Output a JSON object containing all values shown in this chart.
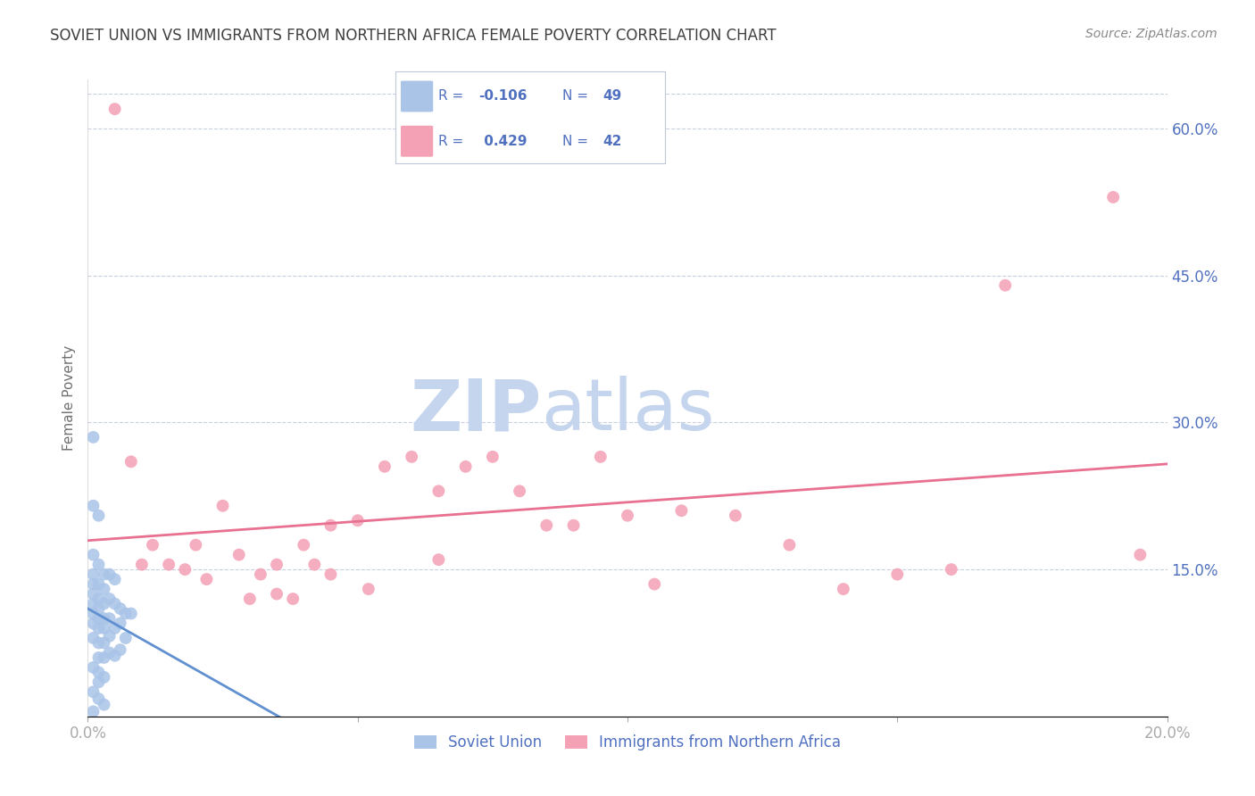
{
  "title": "SOVIET UNION VS IMMIGRANTS FROM NORTHERN AFRICA FEMALE POVERTY CORRELATION CHART",
  "source": "Source: ZipAtlas.com",
  "ylabel": "Female Poverty",
  "xlim": [
    0.0,
    0.2
  ],
  "ylim": [
    0.0,
    0.65
  ],
  "legend1_r": "-0.106",
  "legend1_n": "49",
  "legend2_r": "0.429",
  "legend2_n": "42",
  "series1_label": "Soviet Union",
  "series2_label": "Immigrants from Northern Africa",
  "series1_color": "#aac4e8",
  "series2_color": "#f4a0b5",
  "line1_color": "#6090d0",
  "line2_color": "#e87090",
  "watermark_zip": "ZIP",
  "watermark_atlas": "atlas",
  "watermark_color": "#c8d8f0",
  "grid_color": "#c8d0e0",
  "bg_color": "#ffffff",
  "title_color": "#404040",
  "tick_label_color": "#5070c0",
  "soviet_x": [
    0.001,
    0.001,
    0.001,
    0.001,
    0.001,
    0.001,
    0.001,
    0.001,
    0.001,
    0.001,
    0.002,
    0.002,
    0.002,
    0.002,
    0.002,
    0.002,
    0.002,
    0.002,
    0.002,
    0.002,
    0.003,
    0.003,
    0.003,
    0.003,
    0.003,
    0.003,
    0.003,
    0.003,
    0.004,
    0.004,
    0.004,
    0.004,
    0.004,
    0.005,
    0.005,
    0.005,
    0.005,
    0.006,
    0.006,
    0.006,
    0.007,
    0.007,
    0.008,
    0.001,
    0.002,
    0.001,
    0.002,
    0.003,
    0.001
  ],
  "soviet_y": [
    0.285,
    0.215,
    0.165,
    0.145,
    0.135,
    0.125,
    0.115,
    0.105,
    0.095,
    0.08,
    0.205,
    0.155,
    0.135,
    0.12,
    0.11,
    0.1,
    0.09,
    0.075,
    0.06,
    0.045,
    0.145,
    0.13,
    0.115,
    0.1,
    0.09,
    0.075,
    0.06,
    0.04,
    0.145,
    0.12,
    0.1,
    0.082,
    0.065,
    0.14,
    0.115,
    0.09,
    0.062,
    0.11,
    0.095,
    0.068,
    0.105,
    0.08,
    0.105,
    0.05,
    0.035,
    0.025,
    0.018,
    0.012,
    0.005
  ],
  "nafr_x": [
    0.005,
    0.008,
    0.01,
    0.012,
    0.015,
    0.018,
    0.02,
    0.022,
    0.025,
    0.028,
    0.03,
    0.032,
    0.035,
    0.035,
    0.038,
    0.04,
    0.042,
    0.045,
    0.045,
    0.05,
    0.052,
    0.055,
    0.06,
    0.065,
    0.065,
    0.07,
    0.075,
    0.08,
    0.085,
    0.09,
    0.095,
    0.1,
    0.105,
    0.11,
    0.12,
    0.13,
    0.14,
    0.15,
    0.16,
    0.17,
    0.19,
    0.195
  ],
  "nafr_y": [
    0.62,
    0.26,
    0.155,
    0.175,
    0.155,
    0.15,
    0.175,
    0.14,
    0.215,
    0.165,
    0.12,
    0.145,
    0.155,
    0.125,
    0.12,
    0.175,
    0.155,
    0.195,
    0.145,
    0.2,
    0.13,
    0.255,
    0.265,
    0.16,
    0.23,
    0.255,
    0.265,
    0.23,
    0.195,
    0.195,
    0.265,
    0.205,
    0.135,
    0.21,
    0.205,
    0.175,
    0.13,
    0.145,
    0.15,
    0.44,
    0.53,
    0.165
  ]
}
